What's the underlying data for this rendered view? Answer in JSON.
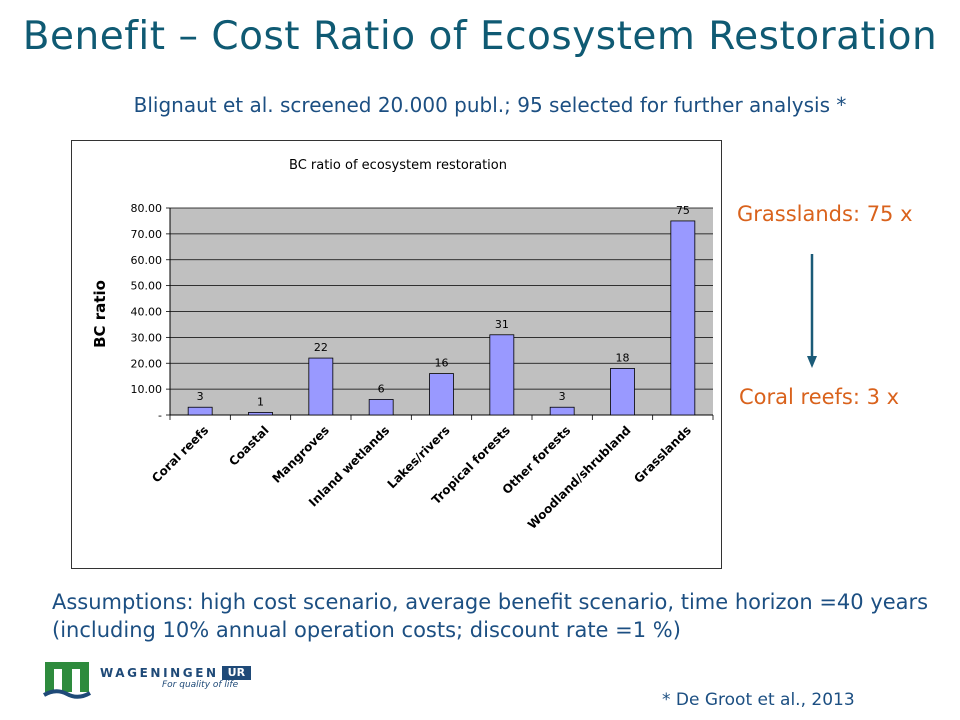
{
  "slide": {
    "title": "Benefit – Cost Ratio of Ecosystem Restoration",
    "subtitle": "Blignaut et al. screened 20.000 publ.; 95 selected for further analysis *",
    "callout_top": "Grasslands: 75 x",
    "callout_bottom": "Coral reefs:  3 x",
    "assumptions": "Assumptions: high cost scenario, average benefit scenario, time horizon =40 years (including 10% annual operation costs; discount rate =1 %)",
    "citation": "* De Groot et al., 2013",
    "logo": {
      "name": "WAGENINGEN",
      "suffix": "UR",
      "tagline": "For quality of life"
    }
  },
  "colors": {
    "title": "#0f5a73",
    "text_blue": "#1c4f82",
    "accent_orange": "#d9621c",
    "bar_fill": "#9999ff",
    "plot_bg": "#c0c0c0",
    "arrow": "#1b5b78"
  },
  "chart_data": {
    "type": "bar",
    "title": "BC ratio of ecosystem restoration",
    "ylabel": "BC ratio",
    "xlabel": "",
    "categories": [
      "Coral reefs",
      "Coastal",
      "Mangroves",
      "Inland wetlands",
      "Lakes/rivers",
      "Tropical forests",
      "Other forests",
      "Woodland/shrubland",
      "Grasslands"
    ],
    "values": [
      3,
      1,
      22,
      6,
      16,
      31,
      3,
      18,
      75
    ],
    "value_labels": [
      "3",
      "1",
      "22",
      "6",
      "16",
      "31",
      "3",
      "18",
      "75"
    ],
    "ylim": [
      0,
      80
    ],
    "yticks": [
      "-",
      "10.00",
      "20.00",
      "30.00",
      "40.00",
      "50.00",
      "60.00",
      "70.00",
      "80.00"
    ],
    "grid": true,
    "legend": "none"
  }
}
